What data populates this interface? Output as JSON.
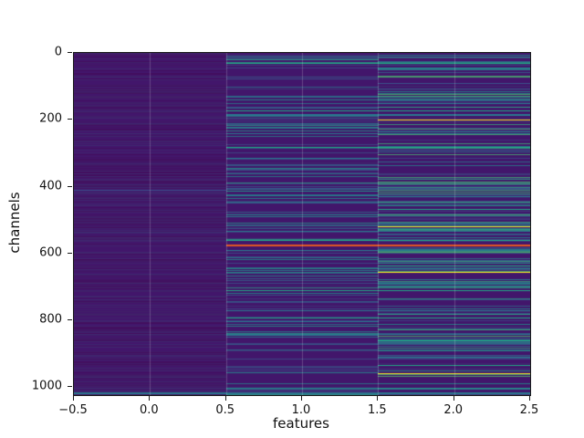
{
  "chart_data": {
    "type": "heatmap",
    "title": "",
    "xlabel": "features",
    "ylabel": "channels",
    "x_ticks": [
      "−0.5",
      "0.0",
      "0.5",
      "1.0",
      "1.5",
      "2.0",
      "2.5"
    ],
    "y_ticks": [
      "0",
      "200",
      "400",
      "600",
      "800",
      "1000"
    ],
    "xlim": [
      -0.5,
      2.5
    ],
    "n_features": 3,
    "n_channels": 1024,
    "colormap": "viridis",
    "summary": "Dense dark-purple heatmap of 1024 channels x 3 features; feature column 0 is mostly uniform low values, feature columns 1 and 2 contain many sparse bright horizontal streaks (teal/green/yellow).",
    "background_color": "#42166b",
    "colormap_stops": [
      {
        "v": 0.0,
        "color": "#440154"
      },
      {
        "v": 0.25,
        "color": "#3b528b"
      },
      {
        "v": 0.5,
        "color": "#21918c"
      },
      {
        "v": 0.75,
        "color": "#5ec962"
      },
      {
        "v": 1.0,
        "color": "#fde725"
      }
    ],
    "vertical_gridlines": [
      0.0,
      0.5,
      1.0,
      1.5,
      2.0
    ],
    "vertical_gridline_color": "rgba(255,255,255,0.20)",
    "noise_seed": 42,
    "columns": [
      {
        "feature": 0,
        "streak_density": 0.3,
        "min_intensity": 0.03,
        "max_intensity": 0.14
      },
      {
        "feature": 1,
        "streak_density": 0.14,
        "min_intensity": 0.1,
        "max_intensity": 0.55
      },
      {
        "feature": 2,
        "streak_density": 0.2,
        "min_intensity": 0.1,
        "max_intensity": 0.7
      }
    ],
    "bright_rows": [
      {
        "channel": 12,
        "features": [
          1,
          2
        ],
        "color": "#2a788e",
        "thick": 1
      },
      {
        "channel": 30,
        "features": [
          1,
          2
        ],
        "color": "#22a884",
        "thick": 1
      },
      {
        "channel": 48,
        "features": [
          2
        ],
        "color": "#2a788e",
        "thick": 1
      },
      {
        "channel": 90,
        "features": [
          2
        ],
        "color": "#3b528b",
        "thick": 1
      },
      {
        "channel": 150,
        "features": [
          2
        ],
        "color": "#2a788e",
        "thick": 1
      },
      {
        "channel": 172,
        "features": [
          1,
          2
        ],
        "color": "#22a884",
        "thick": 1
      },
      {
        "channel": 184,
        "features": [
          1,
          2
        ],
        "color": "#2a788e",
        "thick": 2
      },
      {
        "channel": 200,
        "features": [
          2
        ],
        "color": "#fde725",
        "thick": 1
      },
      {
        "channel": 240,
        "features": [
          1,
          2
        ],
        "color": "#2a788e",
        "thick": 1
      },
      {
        "channel": 281,
        "features": [
          1,
          2
        ],
        "color": "#22a884",
        "thick": 1
      },
      {
        "channel": 314,
        "features": [
          1
        ],
        "color": "#2a788e",
        "thick": 1
      },
      {
        "channel": 404,
        "features": [
          1,
          2
        ],
        "color": "#3b528b",
        "thick": 1
      },
      {
        "channel": 410,
        "features": [
          0
        ],
        "color": "#3b528b",
        "thick": 1
      },
      {
        "channel": 430,
        "features": [
          2
        ],
        "color": "#2a788e",
        "thick": 1
      },
      {
        "channel": 467,
        "features": [
          2
        ],
        "color": "#22a884",
        "thick": 1
      },
      {
        "channel": 519,
        "features": [
          2
        ],
        "color": "#fde725",
        "thick": 1
      },
      {
        "channel": 532,
        "features": [
          1,
          2
        ],
        "color": "#2a788e",
        "thick": 1
      },
      {
        "channel": 560,
        "features": [
          1,
          2
        ],
        "color": "#22a884",
        "thick": 1
      },
      {
        "channel": 573,
        "features": [
          1,
          2
        ],
        "color": "#e25822",
        "thick": 2
      },
      {
        "channel": 590,
        "features": [
          1,
          2
        ],
        "color": "#2a788e",
        "thick": 1
      },
      {
        "channel": 636,
        "features": [
          2
        ],
        "color": "#22a884",
        "thick": 1
      },
      {
        "channel": 655,
        "features": [
          2
        ],
        "color": "#fde725",
        "thick": 1
      },
      {
        "channel": 677,
        "features": [
          2
        ],
        "color": "#2a788e",
        "thick": 1
      },
      {
        "channel": 710,
        "features": [
          1,
          2
        ],
        "color": "#22a884",
        "thick": 1
      },
      {
        "channel": 772,
        "features": [
          1,
          2
        ],
        "color": "#2a788e",
        "thick": 1
      },
      {
        "channel": 792,
        "features": [
          1,
          2
        ],
        "color": "#22a884",
        "thick": 1
      },
      {
        "channel": 805,
        "features": [
          1
        ],
        "color": "#2a788e",
        "thick": 1
      },
      {
        "channel": 841,
        "features": [
          1,
          2
        ],
        "color": "#2a788e",
        "thick": 1
      },
      {
        "channel": 860,
        "features": [
          2
        ],
        "color": "#22a884",
        "thick": 1
      },
      {
        "channel": 909,
        "features": [
          2
        ],
        "color": "#2a788e",
        "thick": 1
      },
      {
        "channel": 936,
        "features": [
          2
        ],
        "color": "#22a884",
        "thick": 1
      },
      {
        "channel": 958,
        "features": [
          2
        ],
        "color": "#fde725",
        "thick": 1
      },
      {
        "channel": 1005,
        "features": [
          1,
          2
        ],
        "color": "#2a788e",
        "thick": 1
      },
      {
        "channel": 1018,
        "features": [
          0,
          1,
          2
        ],
        "color": "#2a788e",
        "thick": 2
      }
    ]
  }
}
